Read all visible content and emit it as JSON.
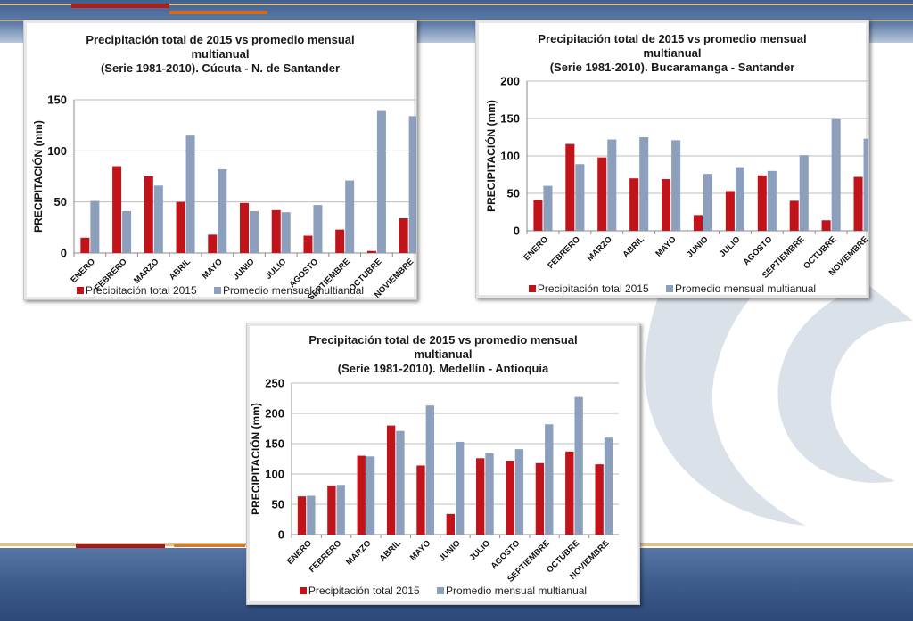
{
  "colors": {
    "series_2015": "#c0141a",
    "series_avg": "#8c9fbc"
  },
  "chart_data": [
    {
      "type": "bar",
      "title_lines": [
        "Precipitación total de 2015 vs promedio mensual",
        "multianual",
        "(Serie 1981-2010). Cúcuta - N. de Santander"
      ],
      "ylabel": "PRECIPITACIÓN (mm)",
      "xlabel": "",
      "ylim": [
        0,
        150
      ],
      "yticks": [
        0,
        50,
        100,
        150
      ],
      "categories": [
        "ENERO",
        "FEBRERO",
        "MARZO",
        "ABRIL",
        "MAYO",
        "JUNIO",
        "JULIO",
        "AGOSTO",
        "SEPTIEMBRE",
        "OCTUBRE",
        "NOVIEMBRE"
      ],
      "series": [
        {
          "name": "Precipitación total 2015",
          "values": [
            15,
            85,
            75,
            50,
            18,
            49,
            42,
            17,
            23,
            2,
            34
          ]
        },
        {
          "name": "Promedio mensual multianual",
          "values": [
            51,
            41,
            66,
            115,
            82,
            41,
            40,
            47,
            71,
            139,
            134
          ]
        }
      ],
      "legend_position": "bottom",
      "grid": true
    },
    {
      "type": "bar",
      "title_lines": [
        "Precipitación total de 2015 vs promedio mensual",
        "multianual",
        "(Serie 1981-2010). Bucaramanga - Santander"
      ],
      "ylabel": "PRECIPITACIÓN (mm)",
      "xlabel": "",
      "ylim": [
        0,
        200
      ],
      "yticks": [
        0,
        50,
        100,
        150,
        200
      ],
      "categories": [
        "ENERO",
        "FEBRERO",
        "MARZO",
        "ABRIL",
        "MAYO",
        "JUNIO",
        "JULIO",
        "AGOSTO",
        "SEPTIEMBRE",
        "OCTUBRE",
        "NOVIEMBRE"
      ],
      "series": [
        {
          "name": "Precipitación total 2015",
          "values": [
            41,
            116,
            98,
            70,
            69,
            21,
            53,
            74,
            40,
            14,
            72
          ]
        },
        {
          "name": "Promedio mensual multianual",
          "values": [
            60,
            89,
            122,
            125,
            121,
            76,
            85,
            80,
            101,
            149,
            123
          ]
        }
      ],
      "legend_position": "bottom",
      "grid": true
    },
    {
      "type": "bar",
      "title_lines": [
        "Precipitación total de 2015 vs promedio mensual",
        "multianual",
        "(Serie 1981-2010). Medellín - Antioquia"
      ],
      "ylabel": "PRECIPITACIÓN (mm)",
      "xlabel": "",
      "ylim": [
        0,
        250
      ],
      "yticks": [
        0,
        50,
        100,
        150,
        200,
        250
      ],
      "categories": [
        "ENERO",
        "FEBRERO",
        "MARZO",
        "ABRIL",
        "MAYO",
        "JUNIO",
        "JULIO",
        "AGOSTO",
        "SEPTIEMBRE",
        "OCTUBRE",
        "NOVIEMBRE"
      ],
      "series": [
        {
          "name": "Precipitación total 2015",
          "values": [
            63,
            81,
            130,
            180,
            114,
            34,
            126,
            122,
            118,
            137,
            116
          ]
        },
        {
          "name": "Promedio mensual multianual",
          "values": [
            64,
            82,
            129,
            171,
            213,
            153,
            134,
            141,
            182,
            227,
            160
          ]
        }
      ],
      "legend_position": "bottom",
      "grid": true
    }
  ]
}
